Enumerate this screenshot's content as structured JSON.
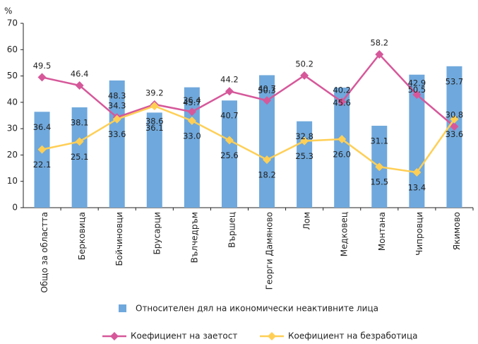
{
  "chart_data": {
    "type": "bar",
    "y_label": "%",
    "categories": [
      "Общо за областта",
      "Берковица",
      "Бойчиновци",
      "Брусарци",
      "Вълчедръм",
      "Вършец",
      "Георги Дамяново",
      "Лом",
      "Медковец",
      "Монтана",
      "Чипровци",
      "Якимово"
    ],
    "series": [
      {
        "name": "Относителен дял на икономически неактивните лица",
        "type": "bar",
        "color": "#6fa8dc",
        "values": [
          36.4,
          38.1,
          48.3,
          36.1,
          45.7,
          40.7,
          50.3,
          32.8,
          45.6,
          31.1,
          50.5,
          53.7
        ]
      },
      {
        "name": "Коефициент на заетост",
        "type": "line",
        "color": "#d6589a",
        "values": [
          49.5,
          46.4,
          34.3,
          39.2,
          36.4,
          44.2,
          40.7,
          50.2,
          40.2,
          58.2,
          42.9,
          30.8
        ]
      },
      {
        "name": "Коефициент на безработица",
        "type": "line",
        "color": "#ffcf55",
        "values": [
          22.1,
          25.1,
          33.6,
          38.6,
          33.0,
          25.6,
          18.2,
          25.3,
          26.0,
          15.5,
          13.4,
          33.6
        ],
        "value_labels": [
          "22.1",
          "25.1",
          "33.6",
          "38.6",
          "33.0",
          "25.6",
          "18.2",
          "25.3",
          "26.0",
          "15.5",
          "13.4",
          "33.6"
        ]
      }
    ],
    "ylim": [
      0,
      70
    ],
    "yticks": [
      0,
      10,
      20,
      30,
      40,
      50,
      60,
      70
    ],
    "grid": false
  }
}
